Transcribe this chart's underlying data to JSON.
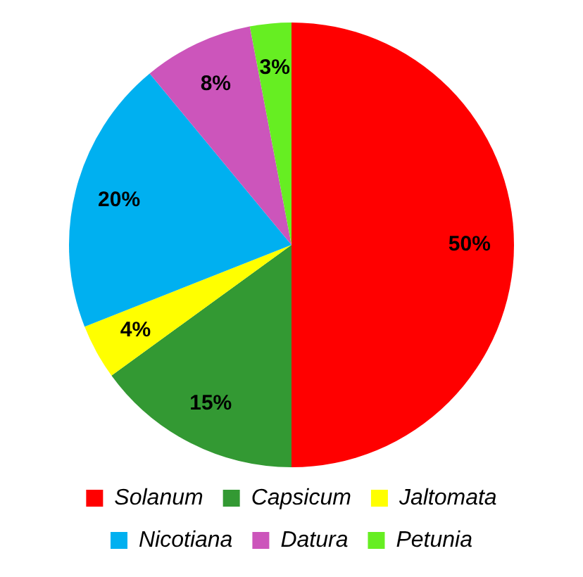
{
  "chart_data": {
    "type": "pie",
    "categories": [
      "Solanum",
      "Capsicum",
      "Jaltomata",
      "Nicotiana",
      "Datura",
      "Petunia"
    ],
    "values": [
      50,
      15,
      4,
      20,
      8,
      3
    ],
    "colors": [
      "#ff0000",
      "#339933",
      "#ffff00",
      "#00b0f0",
      "#cc55bb",
      "#66ee22"
    ],
    "value_labels": [
      "50%",
      "15%",
      "4%",
      "20%",
      "8%",
      "3%"
    ],
    "legend": "bottom"
  }
}
